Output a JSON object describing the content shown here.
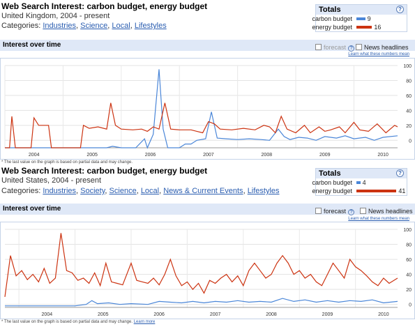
{
  "colors": {
    "carbon": "#4a86d8",
    "energy": "#cc3311",
    "accent": "#2a5db0",
    "header_bg": "#dfe8f7"
  },
  "panels": [
    {
      "title": "Web Search Interest: carbon budget, energy budget",
      "subtitle": "United Kingdom, 2004 - present",
      "categories_label": "Categories:",
      "categories": [
        "Industries",
        "Science",
        "Local",
        "Lifestyles"
      ],
      "totals": {
        "header": "Totals",
        "rows": [
          {
            "label": "carbon budget",
            "value": "9",
            "pct": 9
          },
          {
            "label": "energy budget",
            "value": "16",
            "pct": 16
          }
        ]
      },
      "interest_label": "Interest over time",
      "forecast_label": "forecast",
      "news_label": "News headlines",
      "learn_more": "Learn what these numbers mean",
      "note": "* The last value on the graph is based on partial data and may change.",
      "note_link": "",
      "chart_data": {
        "type": "line",
        "x_start": 2004,
        "x_end": 2010.75,
        "x_ticks": [
          "2004",
          "2005",
          "2006",
          "2007",
          "2008",
          "2009",
          "2010"
        ],
        "y_ticks": [
          "100",
          "80",
          "60",
          "40",
          "20",
          "0"
        ],
        "ylim": [
          -10,
          100
        ],
        "grid": true,
        "series": [
          {
            "name": "carbon budget",
            "color": "#4a86d8",
            "points": [
              [
                2004,
                -10
              ],
              [
                2005.5,
                -10
              ],
              [
                2005.75,
                -10
              ],
              [
                2005.85,
                -8
              ],
              [
                2006.0,
                -10
              ],
              [
                2006.25,
                -10
              ],
              [
                2006.4,
                2
              ],
              [
                2006.45,
                -10
              ],
              [
                2006.55,
                8
              ],
              [
                2006.65,
                95
              ],
              [
                2006.72,
                15
              ],
              [
                2006.8,
                -10
              ],
              [
                2006.9,
                -10
              ],
              [
                2007.0,
                -10
              ],
              [
                2007.1,
                -5
              ],
              [
                2007.2,
                -5
              ],
              [
                2007.3,
                0
              ],
              [
                2007.45,
                2
              ],
              [
                2007.55,
                38
              ],
              [
                2007.65,
                3
              ],
              [
                2007.8,
                2
              ],
              [
                2008.0,
                1
              ],
              [
                2008.2,
                2
              ],
              [
                2008.4,
                1
              ],
              [
                2008.55,
                0
              ],
              [
                2008.7,
                15
              ],
              [
                2008.8,
                5
              ],
              [
                2008.9,
                1
              ],
              [
                2009.05,
                4
              ],
              [
                2009.2,
                3
              ],
              [
                2009.35,
                0
              ],
              [
                2009.5,
                5
              ],
              [
                2009.7,
                3
              ],
              [
                2009.85,
                6
              ],
              [
                2010.0,
                2
              ],
              [
                2010.2,
                4
              ],
              [
                2010.35,
                0
              ],
              [
                2010.5,
                4
              ],
              [
                2010.75,
                6
              ]
            ]
          },
          {
            "name": "energy budget",
            "color": "#cc3311",
            "points": [
              [
                2004,
                -10
              ],
              [
                2004.08,
                -10
              ],
              [
                2004.12,
                32
              ],
              [
                2004.18,
                -10
              ],
              [
                2004.45,
                -10
              ],
              [
                2004.5,
                30
              ],
              [
                2004.58,
                20
              ],
              [
                2004.75,
                20
              ],
              [
                2004.8,
                -10
              ],
              [
                2005.3,
                -10
              ],
              [
                2005.35,
                20
              ],
              [
                2005.45,
                16
              ],
              [
                2005.6,
                18
              ],
              [
                2005.75,
                15
              ],
              [
                2005.82,
                50
              ],
              [
                2005.9,
                20
              ],
              [
                2006.0,
                15
              ],
              [
                2006.2,
                14
              ],
              [
                2006.35,
                15
              ],
              [
                2006.45,
                12
              ],
              [
                2006.55,
                18
              ],
              [
                2006.65,
                15
              ],
              [
                2006.75,
                50
              ],
              [
                2006.85,
                15
              ],
              [
                2007.0,
                14
              ],
              [
                2007.2,
                14
              ],
              [
                2007.3,
                12
              ],
              [
                2007.4,
                10
              ],
              [
                2007.5,
                25
              ],
              [
                2007.6,
                22
              ],
              [
                2007.7,
                15
              ],
              [
                2007.9,
                14
              ],
              [
                2008.1,
                16
              ],
              [
                2008.3,
                14
              ],
              [
                2008.45,
                20
              ],
              [
                2008.55,
                18
              ],
              [
                2008.65,
                10
              ],
              [
                2008.75,
                32
              ],
              [
                2008.85,
                15
              ],
              [
                2009.0,
                10
              ],
              [
                2009.15,
                20
              ],
              [
                2009.25,
                10
              ],
              [
                2009.4,
                18
              ],
              [
                2009.5,
                12
              ],
              [
                2009.6,
                14
              ],
              [
                2009.75,
                18
              ],
              [
                2009.85,
                10
              ],
              [
                2010.0,
                24
              ],
              [
                2010.1,
                14
              ],
              [
                2010.25,
                12
              ],
              [
                2010.4,
                22
              ],
              [
                2010.55,
                10
              ],
              [
                2010.7,
                20
              ],
              [
                2010.75,
                18
              ]
            ]
          }
        ]
      }
    },
    {
      "title": "Web Search Interest: carbon budget, energy budget",
      "subtitle": "United States, 2004 - present",
      "categories_label": "Categories:",
      "categories": [
        "Industries",
        "Society",
        "Science",
        "Local",
        "News & Current Events",
        "Lifestyles"
      ],
      "totals": {
        "header": "Totals",
        "rows": [
          {
            "label": "carbon budget",
            "value": "4",
            "pct": 4
          },
          {
            "label": "energy budget",
            "value": "41",
            "pct": 41
          }
        ]
      },
      "interest_label": "Interest over time",
      "forecast_label": "forecast",
      "news_label": "News headlines",
      "learn_more": "Learn what these numbers mean",
      "note": "* The last value on the graph is based on partial data and may change.",
      "note_link": "Learn more",
      "chart_data": {
        "type": "line",
        "x_start": 2003.75,
        "x_end": 2010.75,
        "x_ticks": [
          "2004",
          "2005",
          "2006",
          "2007",
          "2008",
          "2009",
          "2010"
        ],
        "y_ticks": [
          "100",
          "80",
          "60",
          "40",
          "20",
          "0"
        ],
        "ylim": [
          -4,
          100
        ],
        "grid": true,
        "series": [
          {
            "name": "carbon budget",
            "color": "#4a86d8",
            "points": [
              [
                2003.75,
                -2
              ],
              [
                2004.5,
                -2
              ],
              [
                2005.0,
                -2
              ],
              [
                2005.2,
                0
              ],
              [
                2005.3,
                5
              ],
              [
                2005.4,
                1
              ],
              [
                2005.6,
                2
              ],
              [
                2005.8,
                0
              ],
              [
                2006.0,
                1
              ],
              [
                2006.3,
                0
              ],
              [
                2006.5,
                4
              ],
              [
                2006.7,
                3
              ],
              [
                2006.9,
                2
              ],
              [
                2007.1,
                4
              ],
              [
                2007.3,
                2
              ],
              [
                2007.5,
                4
              ],
              [
                2007.7,
                3
              ],
              [
                2007.9,
                5
              ],
              [
                2008.1,
                3
              ],
              [
                2008.3,
                4
              ],
              [
                2008.5,
                3
              ],
              [
                2008.7,
                8
              ],
              [
                2008.9,
                4
              ],
              [
                2009.1,
                6
              ],
              [
                2009.3,
                3
              ],
              [
                2009.5,
                5
              ],
              [
                2009.7,
                3
              ],
              [
                2009.9,
                5
              ],
              [
                2010.1,
                4
              ],
              [
                2010.3,
                6
              ],
              [
                2010.5,
                2
              ],
              [
                2010.75,
                4
              ]
            ]
          },
          {
            "name": "energy budget",
            "color": "#cc3311",
            "points": [
              [
                2003.75,
                10
              ],
              [
                2003.85,
                65
              ],
              [
                2003.95,
                38
              ],
              [
                2004.05,
                45
              ],
              [
                2004.15,
                33
              ],
              [
                2004.25,
                40
              ],
              [
                2004.35,
                30
              ],
              [
                2004.45,
                48
              ],
              [
                2004.55,
                28
              ],
              [
                2004.65,
                35
              ],
              [
                2004.75,
                95
              ],
              [
                2004.85,
                45
              ],
              [
                2004.95,
                42
              ],
              [
                2005.05,
                32
              ],
              [
                2005.15,
                35
              ],
              [
                2005.25,
                28
              ],
              [
                2005.35,
                42
              ],
              [
                2005.45,
                25
              ],
              [
                2005.55,
                55
              ],
              [
                2005.65,
                30
              ],
              [
                2005.75,
                28
              ],
              [
                2005.85,
                26
              ],
              [
                2006.0,
                55
              ],
              [
                2006.1,
                32
              ],
              [
                2006.2,
                30
              ],
              [
                2006.3,
                28
              ],
              [
                2006.4,
                35
              ],
              [
                2006.5,
                26
              ],
              [
                2006.6,
                40
              ],
              [
                2006.7,
                60
              ],
              [
                2006.8,
                38
              ],
              [
                2006.9,
                25
              ],
              [
                2007.0,
                30
              ],
              [
                2007.1,
                20
              ],
              [
                2007.2,
                28
              ],
              [
                2007.3,
                15
              ],
              [
                2007.4,
                32
              ],
              [
                2007.5,
                28
              ],
              [
                2007.6,
                35
              ],
              [
                2007.7,
                40
              ],
              [
                2007.8,
                30
              ],
              [
                2007.9,
                38
              ],
              [
                2008.0,
                25
              ],
              [
                2008.1,
                45
              ],
              [
                2008.2,
                55
              ],
              [
                2008.3,
                45
              ],
              [
                2008.4,
                35
              ],
              [
                2008.5,
                40
              ],
              [
                2008.6,
                55
              ],
              [
                2008.7,
                65
              ],
              [
                2008.8,
                55
              ],
              [
                2008.9,
                40
              ],
              [
                2009.0,
                45
              ],
              [
                2009.1,
                35
              ],
              [
                2009.2,
                40
              ],
              [
                2009.3,
                30
              ],
              [
                2009.4,
                25
              ],
              [
                2009.5,
                40
              ],
              [
                2009.6,
                55
              ],
              [
                2009.7,
                45
              ],
              [
                2009.8,
                35
              ],
              [
                2009.9,
                60
              ],
              [
                2010.0,
                50
              ],
              [
                2010.1,
                45
              ],
              [
                2010.2,
                38
              ],
              [
                2010.3,
                30
              ],
              [
                2010.4,
                25
              ],
              [
                2010.5,
                35
              ],
              [
                2010.6,
                28
              ],
              [
                2010.75,
                35
              ]
            ]
          }
        ]
      }
    }
  ]
}
